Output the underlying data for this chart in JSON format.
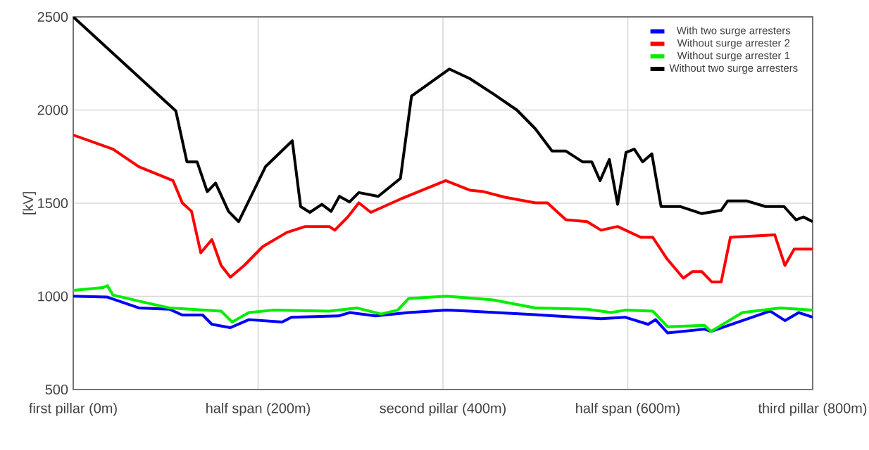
{
  "chart_data": {
    "type": "line",
    "ylabel": "[kV]",
    "xlim": [
      0,
      800
    ],
    "ylim": [
      500,
      2500
    ],
    "xticks": [
      {
        "value": 0,
        "label": "first pillar (0m)"
      },
      {
        "value": 200,
        "label": "half span  (200m)"
      },
      {
        "value": 400,
        "label": "second pillar (400m)"
      },
      {
        "value": 600,
        "label": "half span (600m)"
      },
      {
        "value": 800,
        "label": "third pillar (800m)"
      }
    ],
    "yticks": [
      500,
      1000,
      1500,
      2000,
      2500
    ],
    "grid": true,
    "legend": "top right",
    "marker": "none",
    "line_style": "solid",
    "series": [
      {
        "name": "With two surge arresters",
        "color": "#0000ff",
        "x": [
          0,
          37,
          71,
          104,
          118,
          140,
          150,
          170,
          190,
          226,
          236,
          287,
          299,
          327,
          363,
          404,
          429,
          505,
          571,
          597,
          622,
          630,
          643,
          683,
          690,
          724,
          754,
          770,
          785,
          800
        ],
        "values": [
          1001,
          996,
          938,
          931,
          900,
          900,
          850,
          832,
          875,
          862,
          888,
          895,
          913,
          895,
          913,
          926,
          921,
          900,
          880,
          888,
          850,
          875,
          804,
          824,
          812,
          null,
          921,
          870,
          913,
          888
        ]
      },
      {
        "name": "Without surge arrester 2",
        "color": "#ff0000",
        "x": [
          0,
          43,
          71,
          108,
          118,
          128,
          138,
          150,
          160,
          170,
          185,
          205,
          231,
          251,
          277,
          283,
          297,
          309,
          322,
          353,
          403,
          429,
          444,
          467,
          500,
          513,
          533,
          556,
          571,
          589,
          614,
          627,
          642,
          660,
          670,
          680,
          691,
          701,
          711,
          759,
          770,
          780,
          800
        ],
        "values": [
          1866,
          1790,
          1696,
          1621,
          1502,
          1456,
          1234,
          1305,
          1166,
          1103,
          1166,
          1267,
          1343,
          1375,
          1375,
          1355,
          1426,
          1502,
          1451,
          1520,
          1621,
          1570,
          1562,
          1532,
          1502,
          1502,
          1411,
          1401,
          1355,
          1375,
          1317,
          1317,
          1204,
          1098,
          1133,
          1133,
          1077,
          1077,
          1317,
          1330,
          1166,
          1254,
          1254
        ]
      },
      {
        "name": "Without surge arrester 1",
        "color": "#00ee00",
        "x": [
          0,
          32,
          37,
          43,
          74,
          104,
          160,
          172,
          190,
          216,
          277,
          307,
          333,
          351,
          363,
          404,
          454,
          500,
          556,
          582,
          597,
          627,
          643,
          683,
          690,
          724,
          765,
          800
        ],
        "values": [
          1032,
          1047,
          1057,
          1007,
          971,
          938,
          921,
          862,
          913,
          926,
          921,
          938,
          905,
          926,
          989,
          1001,
          981,
          938,
          931,
          913,
          926,
          921,
          837,
          844,
          812,
          913,
          938,
          926
        ]
      },
      {
        "name": "Without two surge arresters",
        "color": "#000000",
        "x": [
          0,
          111,
          123,
          134,
          145,
          154,
          168,
          179,
          208,
          237,
          246,
          256,
          269,
          279,
          288,
          299,
          309,
          330,
          354,
          366,
          407,
          429,
          454,
          480,
          500,
          518,
          533,
          551,
          561,
          570,
          580,
          589,
          598,
          607,
          616,
          626,
          636,
          657,
          680,
          701,
          708,
          729,
          749,
          769,
          782,
          790,
          800
        ],
        "values": [
          2500,
          1995,
          1722,
          1722,
          1562,
          1608,
          1456,
          1401,
          1696,
          1835,
          1482,
          1451,
          1494,
          1456,
          1537,
          1507,
          1557,
          1537,
          1633,
          2075,
          2220,
          2169,
          2088,
          2000,
          1899,
          1780,
          1780,
          1722,
          1722,
          1621,
          1735,
          1494,
          1772,
          1790,
          1722,
          1765,
          1482,
          1482,
          1444,
          1462,
          1512,
          1512,
          1482,
          1482,
          1411,
          1426,
          1401
        ]
      }
    ]
  }
}
